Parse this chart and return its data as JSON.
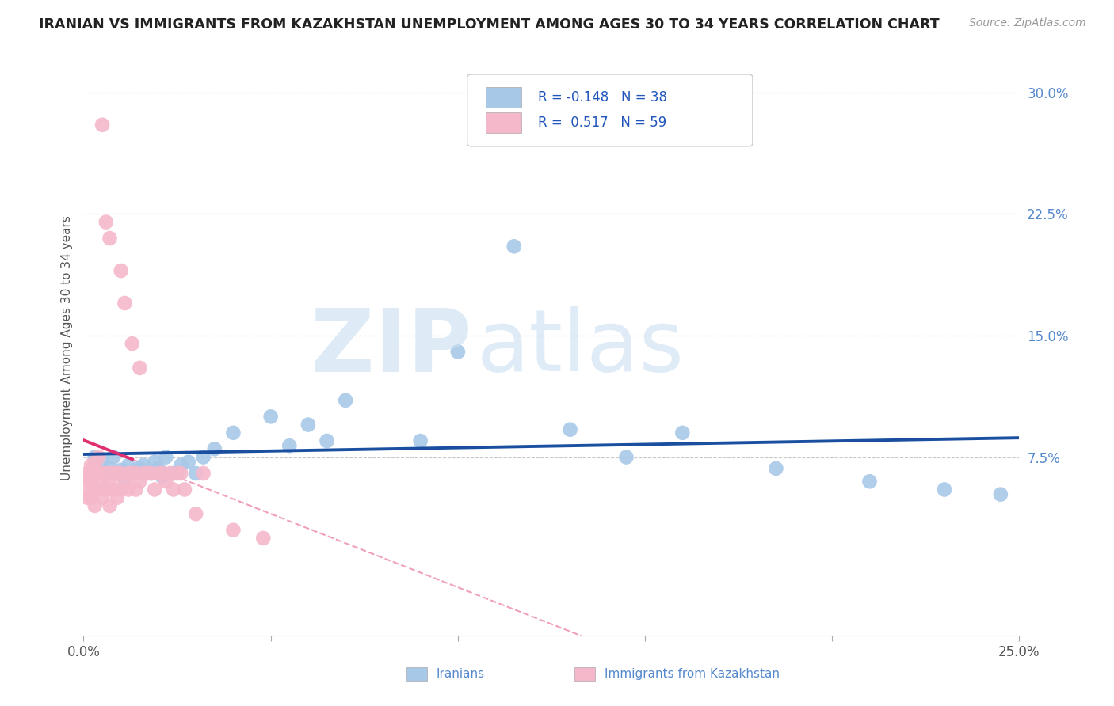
{
  "title": "IRANIAN VS IMMIGRANTS FROM KAZAKHSTAN UNEMPLOYMENT AMONG AGES 30 TO 34 YEARS CORRELATION CHART",
  "source": "Source: ZipAtlas.com",
  "ylabel": "Unemployment Among Ages 30 to 34 years",
  "xlim": [
    0.0,
    0.25
  ],
  "ylim": [
    -0.035,
    0.32
  ],
  "yticks_right": [
    0.075,
    0.15,
    0.225,
    0.3
  ],
  "yticklabels_right": [
    "7.5%",
    "15.0%",
    "22.5%",
    "30.0%"
  ],
  "iranians_color": "#a8c8e8",
  "kazakh_color": "#f5b8cb",
  "trend_iranian_color": "#1a4fa0",
  "trend_kazakh_color": "#e03070",
  "trend_kazakh_dash_color": "#f0a0be",
  "background_color": "#ffffff",
  "grid_color": "#c8c8c8",
  "iranians_x": [
    0.003,
    0.005,
    0.007,
    0.008,
    0.009,
    0.01,
    0.011,
    0.012,
    0.013,
    0.015,
    0.016,
    0.018,
    0.019,
    0.02,
    0.021,
    0.022,
    0.024,
    0.026,
    0.028,
    0.03,
    0.032,
    0.035,
    0.04,
    0.05,
    0.055,
    0.06,
    0.065,
    0.07,
    0.09,
    0.1,
    0.115,
    0.13,
    0.145,
    0.16,
    0.185,
    0.21,
    0.23,
    0.245
  ],
  "iranians_y": [
    0.075,
    0.072,
    0.068,
    0.075,
    0.065,
    0.067,
    0.062,
    0.07,
    0.065,
    0.068,
    0.07,
    0.065,
    0.072,
    0.068,
    0.063,
    0.075,
    0.065,
    0.07,
    0.072,
    0.065,
    0.075,
    0.08,
    0.09,
    0.1,
    0.082,
    0.095,
    0.085,
    0.11,
    0.085,
    0.14,
    0.205,
    0.092,
    0.075,
    0.09,
    0.068,
    0.06,
    0.055,
    0.052
  ],
  "kazakh_x": [
    0.001,
    0.001,
    0.001,
    0.001,
    0.002,
    0.002,
    0.002,
    0.002,
    0.003,
    0.003,
    0.003,
    0.003,
    0.004,
    0.004,
    0.004,
    0.005,
    0.005,
    0.005,
    0.005,
    0.006,
    0.006,
    0.006,
    0.007,
    0.007,
    0.007,
    0.007,
    0.008,
    0.008,
    0.009,
    0.009,
    0.01,
    0.01,
    0.01,
    0.011,
    0.011,
    0.012,
    0.012,
    0.013,
    0.013,
    0.014,
    0.014,
    0.015,
    0.015,
    0.016,
    0.017,
    0.018,
    0.019,
    0.02,
    0.021,
    0.022,
    0.023,
    0.024,
    0.025,
    0.026,
    0.027,
    0.03,
    0.032,
    0.04,
    0.048
  ],
  "kazakh_y": [
    0.065,
    0.062,
    0.055,
    0.05,
    0.065,
    0.07,
    0.06,
    0.05,
    0.065,
    0.07,
    0.055,
    0.045,
    0.075,
    0.065,
    0.055,
    0.28,
    0.065,
    0.06,
    0.05,
    0.22,
    0.065,
    0.055,
    0.21,
    0.065,
    0.06,
    0.045,
    0.065,
    0.055,
    0.065,
    0.05,
    0.19,
    0.065,
    0.055,
    0.17,
    0.06,
    0.065,
    0.055,
    0.145,
    0.065,
    0.065,
    0.055,
    0.13,
    0.06,
    0.065,
    0.065,
    0.065,
    0.055,
    0.065,
    0.065,
    0.06,
    0.065,
    0.055,
    0.065,
    0.065,
    0.055,
    0.04,
    0.065,
    0.03,
    0.025
  ]
}
